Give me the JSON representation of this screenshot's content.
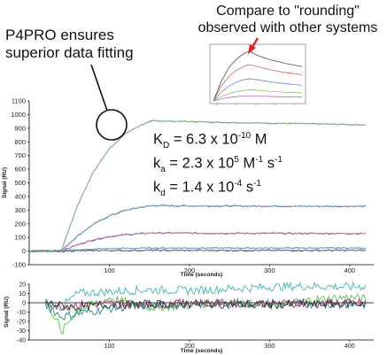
{
  "annotations": {
    "left_callout_line1": "P4PRO ensures",
    "left_callout_line2": "superior data fitting",
    "right_callout_line1": "Compare to \"rounding\"",
    "right_callout_line2": "observed with other systems"
  },
  "kinetics": {
    "kd_sym": "K",
    "kd_sub": "D",
    "kd_val": " = 6.3 x 10",
    "kd_exp": "-10",
    "kd_unit": " M",
    "ka_sym": "k",
    "ka_sub": "a",
    "ka_val": " = 2.3 x 10",
    "ka_exp": "5",
    "ka_unit": " M",
    "ka_exp2": "-1",
    "ka_unit2": " s",
    "ka_exp3": "-1",
    "kdis_sym": "k",
    "kdis_sub": "d",
    "kdis_val": " = 1.4 x 10",
    "kdis_exp": "-4",
    "kdis_unit": " s",
    "kdis_exp2": "-1"
  },
  "colors": {
    "green": "#5ac34a",
    "teal": "#2a8a8a",
    "magenta": "#b0307a",
    "cyan": "#40b5b0",
    "dark": "#333333",
    "fit": "#9aa0c8",
    "arrow": "#e02020"
  },
  "chart_data": [
    {
      "type": "line",
      "title": "",
      "xlabel": "Time (seconds)",
      "ylabel": "Signal (RU)",
      "xlim": [
        0,
        430
      ],
      "ylim": [
        -100,
        1100
      ],
      "xticks": [
        100,
        200,
        300,
        400
      ],
      "yticks": [
        -100,
        0,
        100,
        200,
        300,
        400,
        500,
        600,
        700,
        800,
        900,
        1000,
        1100
      ],
      "grid": false,
      "series": [
        {
          "color": "green",
          "values": [
            [
              0,
              0
            ],
            [
              40,
              0
            ],
            [
              60,
              330
            ],
            [
              80,
              580
            ],
            [
              100,
              750
            ],
            [
              120,
              860
            ],
            [
              140,
              925
            ],
            [
              155,
              955
            ],
            [
              170,
              952
            ],
            [
              200,
              948
            ],
            [
              250,
              942
            ],
            [
              300,
              937
            ],
            [
              350,
              932
            ],
            [
              400,
              927
            ],
            [
              420,
              925
            ]
          ]
        },
        {
          "color": "teal",
          "values": [
            [
              0,
              0
            ],
            [
              40,
              0
            ],
            [
              60,
              110
            ],
            [
              80,
              195
            ],
            [
              100,
              258
            ],
            [
              120,
              298
            ],
            [
              140,
              322
            ],
            [
              155,
              333
            ],
            [
              170,
              332
            ],
            [
              200,
              331
            ],
            [
              250,
              330
            ],
            [
              300,
              329
            ],
            [
              350,
              328
            ],
            [
              400,
              328
            ],
            [
              420,
              328
            ]
          ]
        },
        {
          "color": "magenta",
          "values": [
            [
              0,
              0
            ],
            [
              40,
              0
            ],
            [
              60,
              45
            ],
            [
              80,
              82
            ],
            [
              100,
              106
            ],
            [
              120,
              120
            ],
            [
              140,
              128
            ],
            [
              155,
              133
            ],
            [
              170,
              132
            ],
            [
              200,
              131
            ],
            [
              250,
              130
            ],
            [
              300,
              130
            ],
            [
              350,
              129
            ],
            [
              400,
              129
            ],
            [
              420,
              129
            ]
          ]
        },
        {
          "color": "cyan",
          "values": [
            [
              0,
              0
            ],
            [
              40,
              0
            ],
            [
              60,
              8
            ],
            [
              80,
              14
            ],
            [
              100,
              18
            ],
            [
              120,
              20
            ],
            [
              140,
              21
            ],
            [
              155,
              22
            ],
            [
              170,
              22
            ],
            [
              200,
              22
            ],
            [
              250,
              22
            ],
            [
              300,
              22
            ],
            [
              350,
              22
            ],
            [
              400,
              22
            ],
            [
              420,
              22
            ]
          ]
        },
        {
          "color": "dark",
          "values": [
            [
              0,
              0
            ],
            [
              40,
              0
            ],
            [
              60,
              2
            ],
            [
              100,
              4
            ],
            [
              155,
              5
            ],
            [
              200,
              5
            ],
            [
              300,
              5
            ],
            [
              420,
              5
            ]
          ]
        }
      ]
    },
    {
      "type": "line",
      "title": "",
      "xlabel": "Time (seconds)",
      "ylabel": "Signal (RU)",
      "xlim": [
        0,
        430
      ],
      "ylim": [
        -40,
        20
      ],
      "xticks": [
        100,
        200,
        300,
        400
      ],
      "yticks": [
        -40,
        -30,
        -20,
        -10,
        0,
        10,
        20
      ],
      "grid": false,
      "series": [
        {
          "color": "cyan",
          "values": [
            [
              20,
              2
            ],
            [
              40,
              -5
            ],
            [
              60,
              10
            ],
            [
              100,
              12
            ],
            [
              150,
              14
            ],
            [
              200,
              13
            ],
            [
              250,
              15
            ],
            [
              300,
              17
            ],
            [
              350,
              18
            ],
            [
              400,
              17
            ],
            [
              420,
              18
            ]
          ]
        },
        {
          "color": "green",
          "values": [
            [
              20,
              0
            ],
            [
              35,
              -18
            ],
            [
              40,
              -35
            ],
            [
              45,
              -25
            ],
            [
              60,
              -8
            ],
            [
              100,
              5
            ],
            [
              150,
              -5
            ],
            [
              200,
              -3
            ],
            [
              250,
              2
            ],
            [
              300,
              -4
            ],
            [
              350,
              3
            ],
            [
              400,
              6
            ],
            [
              420,
              4
            ]
          ]
        },
        {
          "color": "teal",
          "values": [
            [
              20,
              -2
            ],
            [
              40,
              -15
            ],
            [
              60,
              -12
            ],
            [
              100,
              -6
            ],
            [
              150,
              -3
            ],
            [
              200,
              -2
            ],
            [
              300,
              -1
            ],
            [
              420,
              -2
            ]
          ]
        },
        {
          "color": "magenta",
          "values": [
            [
              20,
              0
            ],
            [
              40,
              -4
            ],
            [
              60,
              -2
            ],
            [
              100,
              -1
            ],
            [
              150,
              -2
            ],
            [
              200,
              0
            ],
            [
              300,
              -1
            ],
            [
              420,
              0
            ]
          ]
        },
        {
          "color": "dark",
          "values": [
            [
              20,
              0
            ],
            [
              40,
              -3
            ],
            [
              60,
              -5
            ],
            [
              100,
              -2
            ],
            [
              200,
              -1
            ],
            [
              300,
              -2
            ],
            [
              420,
              -1
            ]
          ]
        }
      ]
    },
    {
      "type": "line",
      "title": "",
      "xlabel": "",
      "ylabel": "",
      "series": [
        {
          "values": [
            [
              0,
              0
            ],
            [
              10,
              40
            ],
            [
              20,
              68
            ],
            [
              30,
              85
            ],
            [
              40,
              96
            ],
            [
              45,
              98
            ],
            [
              55,
              90
            ],
            [
              70,
              82
            ],
            [
              90,
              74
            ],
            [
              110,
              68
            ]
          ]
        },
        {
          "values": [
            [
              0,
              0
            ],
            [
              10,
              30
            ],
            [
              20,
              50
            ],
            [
              30,
              62
            ],
            [
              40,
              70
            ],
            [
              45,
              72
            ],
            [
              55,
              68
            ],
            [
              70,
              62
            ],
            [
              90,
              56
            ],
            [
              110,
              52
            ]
          ]
        },
        {
          "values": [
            [
              0,
              0
            ],
            [
              10,
              18
            ],
            [
              20,
              30
            ],
            [
              30,
              38
            ],
            [
              40,
              43
            ],
            [
              45,
              44
            ],
            [
              55,
              42
            ],
            [
              70,
              38
            ],
            [
              90,
              34
            ],
            [
              110,
              31
            ]
          ]
        },
        {
          "values": [
            [
              0,
              0
            ],
            [
              10,
              9
            ],
            [
              20,
              15
            ],
            [
              30,
              19
            ],
            [
              40,
              21
            ],
            [
              45,
              22
            ],
            [
              55,
              21
            ],
            [
              70,
              19
            ],
            [
              90,
              17
            ],
            [
              110,
              16
            ]
          ]
        },
        {
          "values": [
            [
              0,
              0
            ],
            [
              10,
              4
            ],
            [
              20,
              7
            ],
            [
              30,
              9
            ],
            [
              40,
              10
            ],
            [
              45,
              10
            ],
            [
              55,
              10
            ],
            [
              70,
              9
            ],
            [
              90,
              8
            ],
            [
              110,
              8
            ]
          ]
        }
      ]
    }
  ]
}
